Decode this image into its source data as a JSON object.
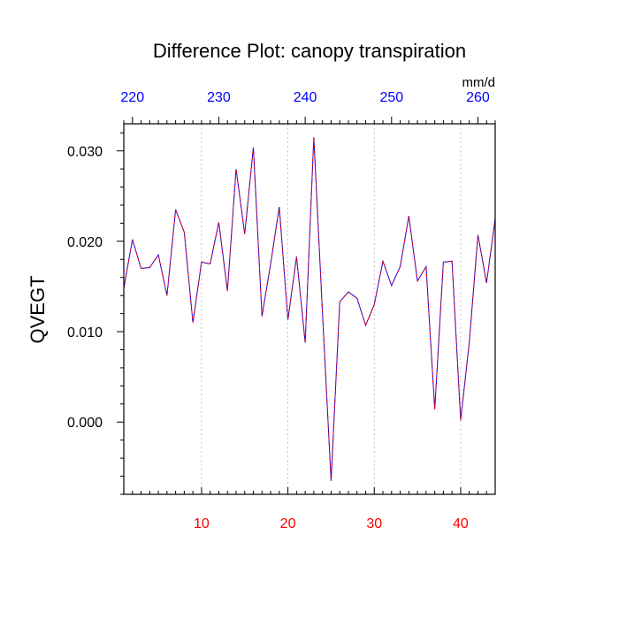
{
  "chart_data": {
    "type": "line",
    "title": "Difference Plot: canopy transpiration",
    "ylabel": "QVEGT",
    "units": "mm/d",
    "xlim": [
      1,
      44
    ],
    "ylim": [
      -0.008,
      0.033
    ],
    "bottom_axis": {
      "ticks": [
        10,
        20,
        30,
        40
      ],
      "labels": [
        "10",
        "20",
        "30",
        "40"
      ],
      "color": "#ff0000"
    },
    "top_axis": {
      "ticks": [
        219,
        229,
        239,
        249,
        259
      ],
      "labels": [
        "220",
        "230",
        "240",
        "250",
        "260"
      ],
      "color": "#0000ff"
    },
    "y_ticks": [
      0.0,
      0.01,
      0.02,
      0.03
    ],
    "y_tick_labels": [
      "0.000",
      "0.010",
      "0.020",
      "0.030"
    ],
    "grid": "dashed vertical lines at bottom-axis major ticks",
    "series": [
      {
        "line_colors": [
          "#0000ff",
          "#ff0000"
        ],
        "line_style": "dashed",
        "x": [
          1,
          2,
          3,
          4,
          5,
          6,
          7,
          8,
          9,
          10,
          11,
          12,
          13,
          14,
          15,
          16,
          17,
          18,
          19,
          20,
          21,
          22,
          23,
          24,
          25,
          26,
          27,
          28,
          29,
          30,
          31,
          32,
          33,
          34,
          35,
          36,
          37,
          38,
          39,
          40,
          41,
          42,
          43,
          44
        ],
        "values": [
          0.0148,
          0.0202,
          0.017,
          0.0171,
          0.0185,
          0.014,
          0.0235,
          0.021,
          0.011,
          0.0177,
          0.0175,
          0.0221,
          0.0145,
          0.028,
          0.0208,
          0.0304,
          0.0117,
          0.0175,
          0.0238,
          0.0113,
          0.0183,
          0.0088,
          0.0315,
          0.0121,
          -0.0065,
          0.0133,
          0.0144,
          0.0137,
          0.0107,
          0.013,
          0.0178,
          0.0151,
          0.0172,
          0.0228,
          0.0156,
          0.0172,
          0.0014,
          0.0177,
          0.0178,
          0.0002,
          0.0088,
          0.0207,
          0.0154,
          0.0225
        ]
      }
    ]
  }
}
